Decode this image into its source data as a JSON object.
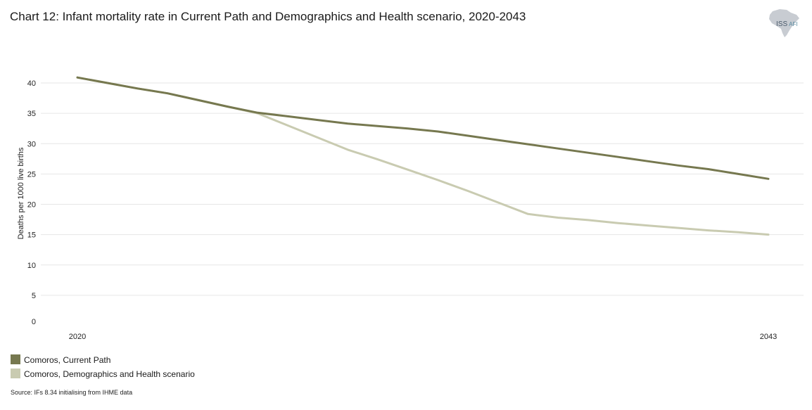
{
  "title": "Chart 12: Infant mortality rate in Current Path and Demographics and Health scenario, 2020-2043",
  "logo": {
    "main": "ISS",
    "sub": "AFI"
  },
  "source": "Source: IFs 8.34 initialising from IHME data",
  "colors": {
    "current_path": "#76784f",
    "dh_scenario": "#c9cbb1",
    "grid": "#e6e6e6"
  },
  "chart_data": {
    "type": "line",
    "title": "Chart 12: Infant mortality rate in Current Path and Demographics and Health scenario, 2020-2043",
    "xlabel": "",
    "ylabel": "Deaths per 1000 live births",
    "x": [
      2020,
      2021,
      2022,
      2023,
      2024,
      2025,
      2026,
      2027,
      2028,
      2029,
      2030,
      2031,
      2032,
      2033,
      2034,
      2035,
      2036,
      2037,
      2038,
      2039,
      2040,
      2041,
      2042,
      2043
    ],
    "xticks": [
      2020,
      2043
    ],
    "ylim": [
      0,
      40
    ],
    "yticks": [
      0,
      5,
      10,
      15,
      20,
      25,
      30,
      35,
      40
    ],
    "grid": true,
    "legend": "bottom-left",
    "series": [
      {
        "name": "Comoros, Current Path",
        "color": "#76784f",
        "values": [
          40.9,
          40.0,
          39.1,
          38.3,
          37.2,
          36.1,
          35.1,
          34.5,
          33.9,
          33.3,
          32.9,
          32.5,
          32.0,
          31.3,
          30.6,
          29.9,
          29.2,
          28.5,
          27.8,
          27.1,
          26.4,
          25.8,
          25.0,
          24.2
        ]
      },
      {
        "name": "Comoros, Demographics and Health scenario",
        "color": "#c9cbb1",
        "values": [
          40.9,
          40.0,
          39.1,
          38.3,
          37.2,
          36.1,
          35.0,
          33.0,
          31.0,
          29.0,
          27.4,
          25.7,
          24.0,
          22.2,
          20.3,
          18.4,
          17.8,
          17.4,
          16.9,
          16.5,
          16.1,
          15.7,
          15.4,
          15.0
        ]
      }
    ]
  }
}
